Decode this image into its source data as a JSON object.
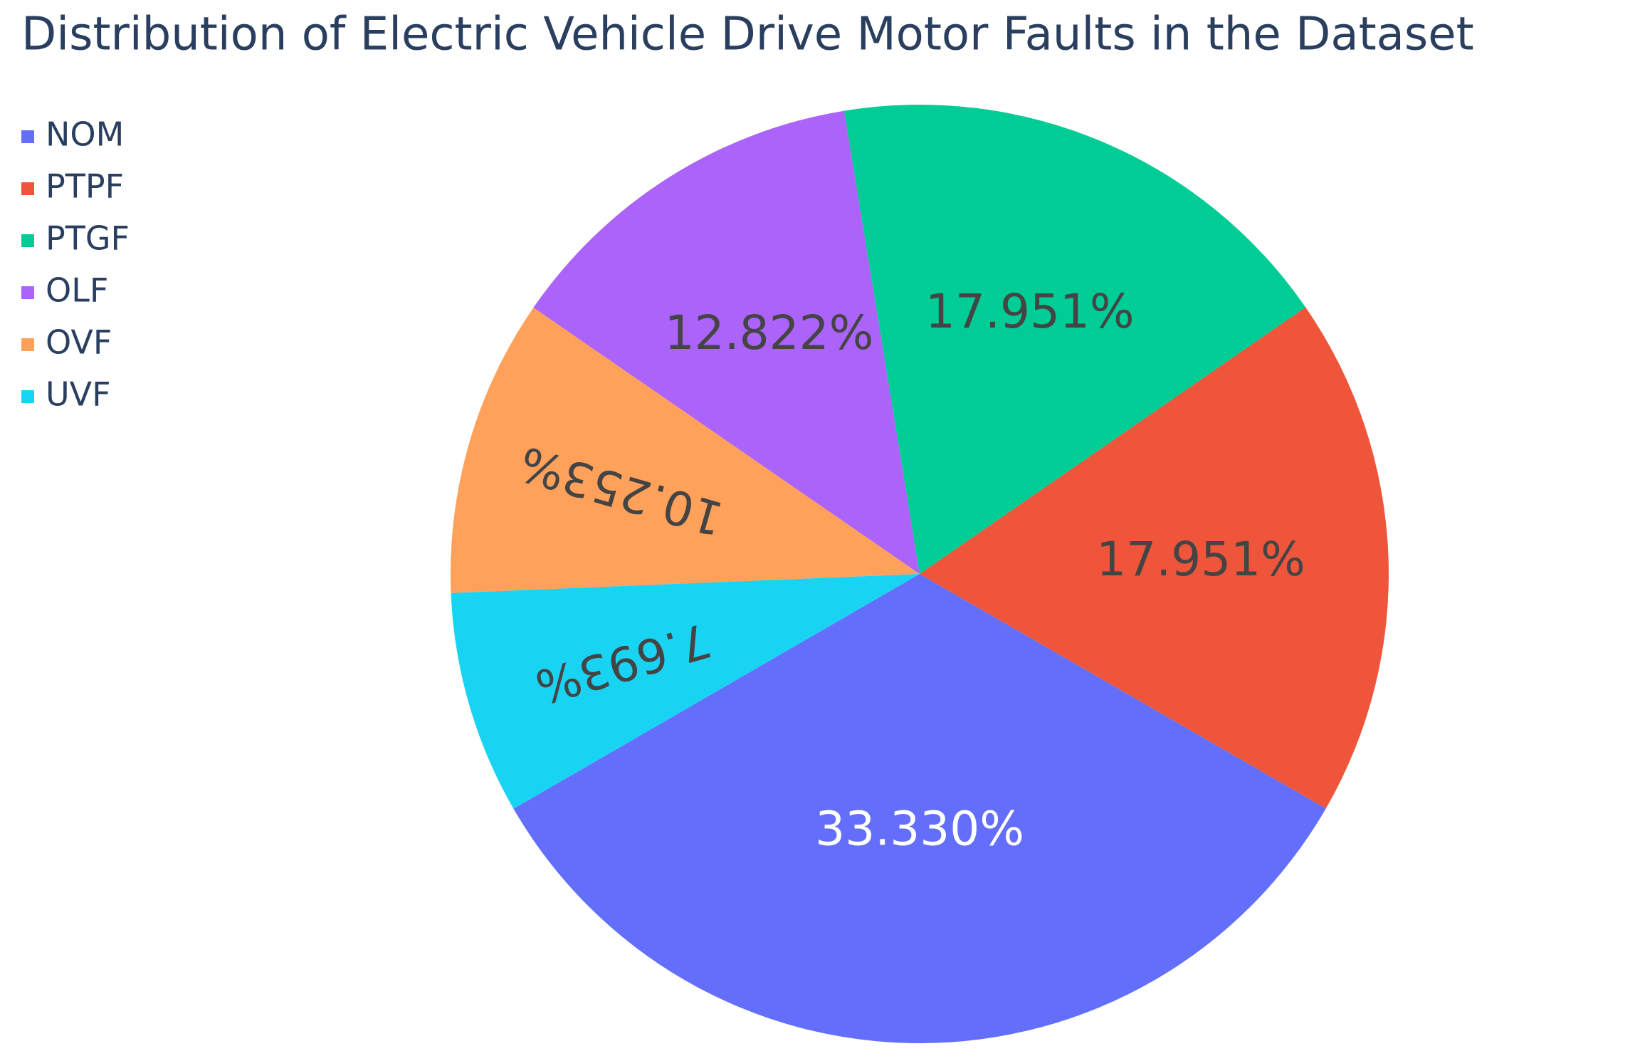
{
  "chart_data": {
    "type": "pie",
    "title": "Distribution of Electric Vehicle Drive Motor Faults in the Dataset",
    "categories": [
      "NOM",
      "PTPF",
      "PTGF",
      "OLF",
      "OVF",
      "UVF"
    ],
    "values": [
      33.33,
      17.951,
      17.951,
      12.822,
      10.253,
      7.693
    ],
    "value_labels": [
      "33.330%",
      "17.951%",
      "17.951%",
      "12.822%",
      "10.253%",
      "7.693%"
    ],
    "colors": [
      "#636efa",
      "#ef553b",
      "#00cc96",
      "#ab63fa",
      "#ffa15a",
      "#19d3f3"
    ],
    "label_colors": [
      "#ffffff",
      "#444444",
      "#444444",
      "#444444",
      "#444444",
      "#444444"
    ],
    "direction": "counterclockwise",
    "legend": "top-left"
  }
}
